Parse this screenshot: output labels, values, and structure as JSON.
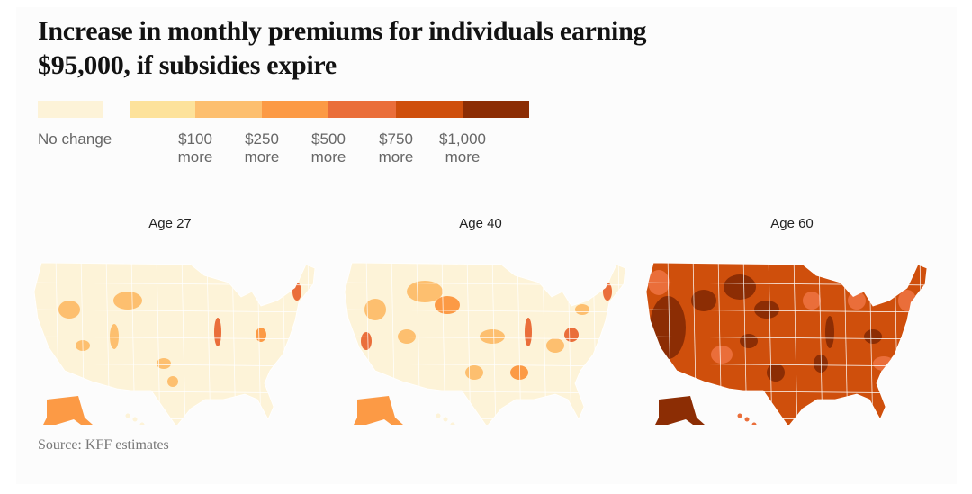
{
  "title": "Increase in monthly premiums for individuals earning $95,000, if subsidies expire",
  "legend": {
    "no_change": {
      "label": "No change",
      "color": "#fdf3d8"
    },
    "steps": [
      {
        "color": "#fde29b"
      },
      {
        "color": "#fdbf6f"
      },
      {
        "color": "#fc9a45"
      },
      {
        "color": "#ea6e3a"
      },
      {
        "color": "#cf4f0c"
      },
      {
        "color": "#8c2d04"
      }
    ],
    "thresholds": [
      {
        "amount": "$100",
        "suffix": "more"
      },
      {
        "amount": "$250",
        "suffix": "more"
      },
      {
        "amount": "$500",
        "suffix": "more"
      },
      {
        "amount": "$750",
        "suffix": "more"
      },
      {
        "amount": "$1,000",
        "suffix": "more"
      }
    ]
  },
  "maps": [
    {
      "title": "Age 27",
      "predominant": "No change"
    },
    {
      "title": "Age 40",
      "predominant": "No change to $100 more"
    },
    {
      "title": "Age 60",
      "predominant": "$500 to $1,000+ more"
    }
  ],
  "source": "Source: KFF estimates"
}
